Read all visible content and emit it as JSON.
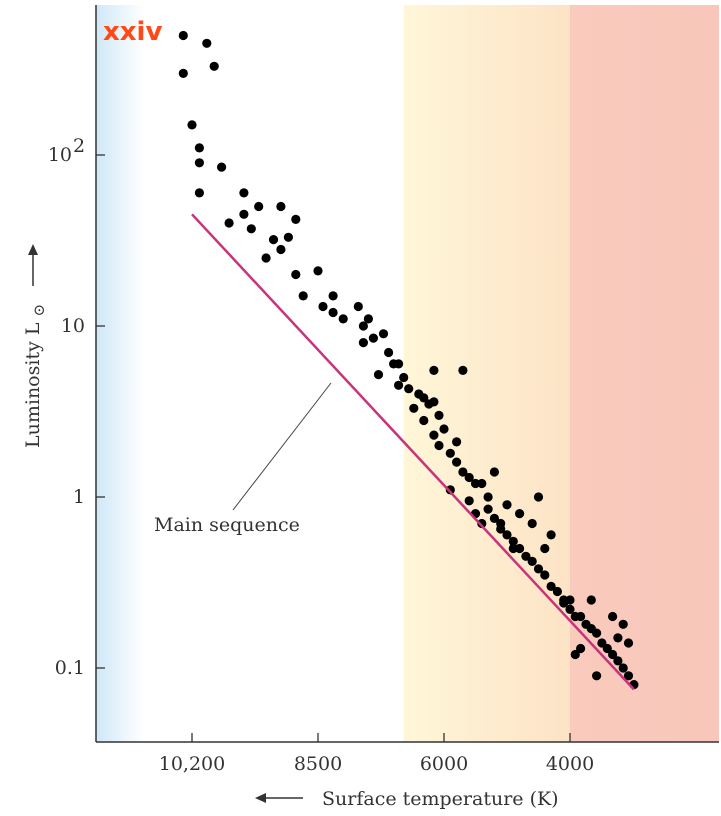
{
  "badge": "xxiv",
  "colors": {
    "point": "#000000",
    "main_sequence": "#c8337a",
    "axis": "#333333",
    "badge": "#ff4a17"
  },
  "chart_data": {
    "type": "scatter",
    "title": "",
    "xlabel": "Surface temperature (K)",
    "ylabel": "Luminosity L",
    "ylabel_symbol": "⊙",
    "x_reversed": true,
    "y_scale": "log",
    "x_ticks": [
      {
        "label": "10,200",
        "value": 10200
      },
      {
        "label": "8500",
        "value": 8500
      },
      {
        "label": "6000",
        "value": 6000
      },
      {
        "label": "4000",
        "value": 4000
      }
    ],
    "y_ticks": [
      {
        "label": "10",
        "exp": "2",
        "value": 100
      },
      {
        "label": "10",
        "exp": "",
        "value": 10
      },
      {
        "label": "1",
        "exp": "",
        "value": 1
      },
      {
        "label": "0.1",
        "exp": "",
        "value": 0.1
      }
    ],
    "background_bands": [
      {
        "from": 12400,
        "to": 11300,
        "color": "#d6ecf9"
      },
      {
        "from": 6800,
        "to": 4000,
        "color": "#fbeed0"
      },
      {
        "from": 4000,
        "to": 1200,
        "color": "#f8c9bd"
      }
    ],
    "main_sequence": {
      "label": "Main sequence",
      "line": [
        {
          "t": 10200,
          "l": 45
        },
        {
          "t": 2800,
          "l": 0.075
        }
      ]
    },
    "points": [
      [
        10400,
        500
      ],
      [
        10400,
        300
      ],
      [
        10000,
        450
      ],
      [
        9900,
        330
      ],
      [
        10200,
        150
      ],
      [
        10100,
        110
      ],
      [
        10100,
        90
      ],
      [
        10100,
        60
      ],
      [
        9800,
        85
      ],
      [
        9700,
        40
      ],
      [
        9500,
        60
      ],
      [
        9500,
        45
      ],
      [
        9300,
        50
      ],
      [
        9100,
        32
      ],
      [
        8900,
        33
      ],
      [
        9000,
        50
      ],
      [
        8800,
        42
      ],
      [
        9400,
        37
      ],
      [
        9200,
        25
      ],
      [
        9000,
        28
      ],
      [
        8800,
        20
      ],
      [
        8700,
        15
      ],
      [
        8400,
        13
      ],
      [
        8200,
        12
      ],
      [
        8000,
        11
      ],
      [
        8500,
        21
      ],
      [
        8200,
        15
      ],
      [
        7600,
        10
      ],
      [
        7700,
        13
      ],
      [
        7500,
        11
      ],
      [
        7200,
        9
      ],
      [
        7400,
        8.5
      ],
      [
        7600,
        8
      ],
      [
        6900,
        6
      ],
      [
        6800,
        5
      ],
      [
        6900,
        4.5
      ],
      [
        6700,
        4.3
      ],
      [
        6500,
        4
      ],
      [
        6400,
        3.8
      ],
      [
        6300,
        3.5
      ],
      [
        6200,
        3.6
      ],
      [
        6100,
        3
      ],
      [
        6000,
        2.5
      ],
      [
        6200,
        2.3
      ],
      [
        5800,
        2.1
      ],
      [
        5900,
        1.8
      ],
      [
        5800,
        1.6
      ],
      [
        5700,
        1.4
      ],
      [
        5600,
        1.3
      ],
      [
        5500,
        1.2
      ],
      [
        5400,
        1.2
      ],
      [
        5300,
        1.0
      ],
      [
        5300,
        0.85
      ],
      [
        5200,
        0.75
      ],
      [
        5100,
        0.7
      ],
      [
        5100,
        0.65
      ],
      [
        5000,
        0.6
      ],
      [
        4900,
        0.55
      ],
      [
        4800,
        0.5
      ],
      [
        4700,
        0.45
      ],
      [
        4600,
        0.42
      ],
      [
        4500,
        0.38
      ],
      [
        4400,
        0.35
      ],
      [
        4300,
        0.3
      ],
      [
        4200,
        0.28
      ],
      [
        4100,
        0.25
      ],
      [
        4100,
        0.24
      ],
      [
        4000,
        0.22
      ],
      [
        3900,
        0.2
      ],
      [
        3800,
        0.2
      ],
      [
        3700,
        0.18
      ],
      [
        3600,
        0.17
      ],
      [
        3500,
        0.16
      ],
      [
        3400,
        0.14
      ],
      [
        3300,
        0.13
      ],
      [
        3200,
        0.12
      ],
      [
        3100,
        0.11
      ],
      [
        3000,
        0.1
      ],
      [
        2900,
        0.09
      ],
      [
        6200,
        5.5
      ],
      [
        5700,
        5.5
      ],
      [
        4500,
        1.0
      ],
      [
        4800,
        0.8
      ],
      [
        5200,
        1.4
      ],
      [
        4300,
        0.6
      ],
      [
        5000,
        0.9
      ],
      [
        5400,
        0.7
      ],
      [
        4600,
        0.7
      ],
      [
        3200,
        0.2
      ],
      [
        3000,
        0.18
      ],
      [
        2900,
        0.14
      ],
      [
        3600,
        0.25
      ],
      [
        3500,
        0.09
      ],
      [
        3800,
        0.13
      ],
      [
        4000,
        0.25
      ],
      [
        5600,
        0.95
      ],
      [
        5900,
        1.1
      ],
      [
        6400,
        2.8
      ],
      [
        7000,
        6
      ],
      [
        7100,
        7
      ],
      [
        7300,
        5.2
      ],
      [
        6600,
        3.3
      ],
      [
        6100,
        2.0
      ],
      [
        5500,
        0.8
      ],
      [
        4900,
        0.5
      ],
      [
        4400,
        0.5
      ],
      [
        3900,
        0.12
      ],
      [
        2800,
        0.08
      ],
      [
        3100,
        0.15
      ]
    ]
  }
}
